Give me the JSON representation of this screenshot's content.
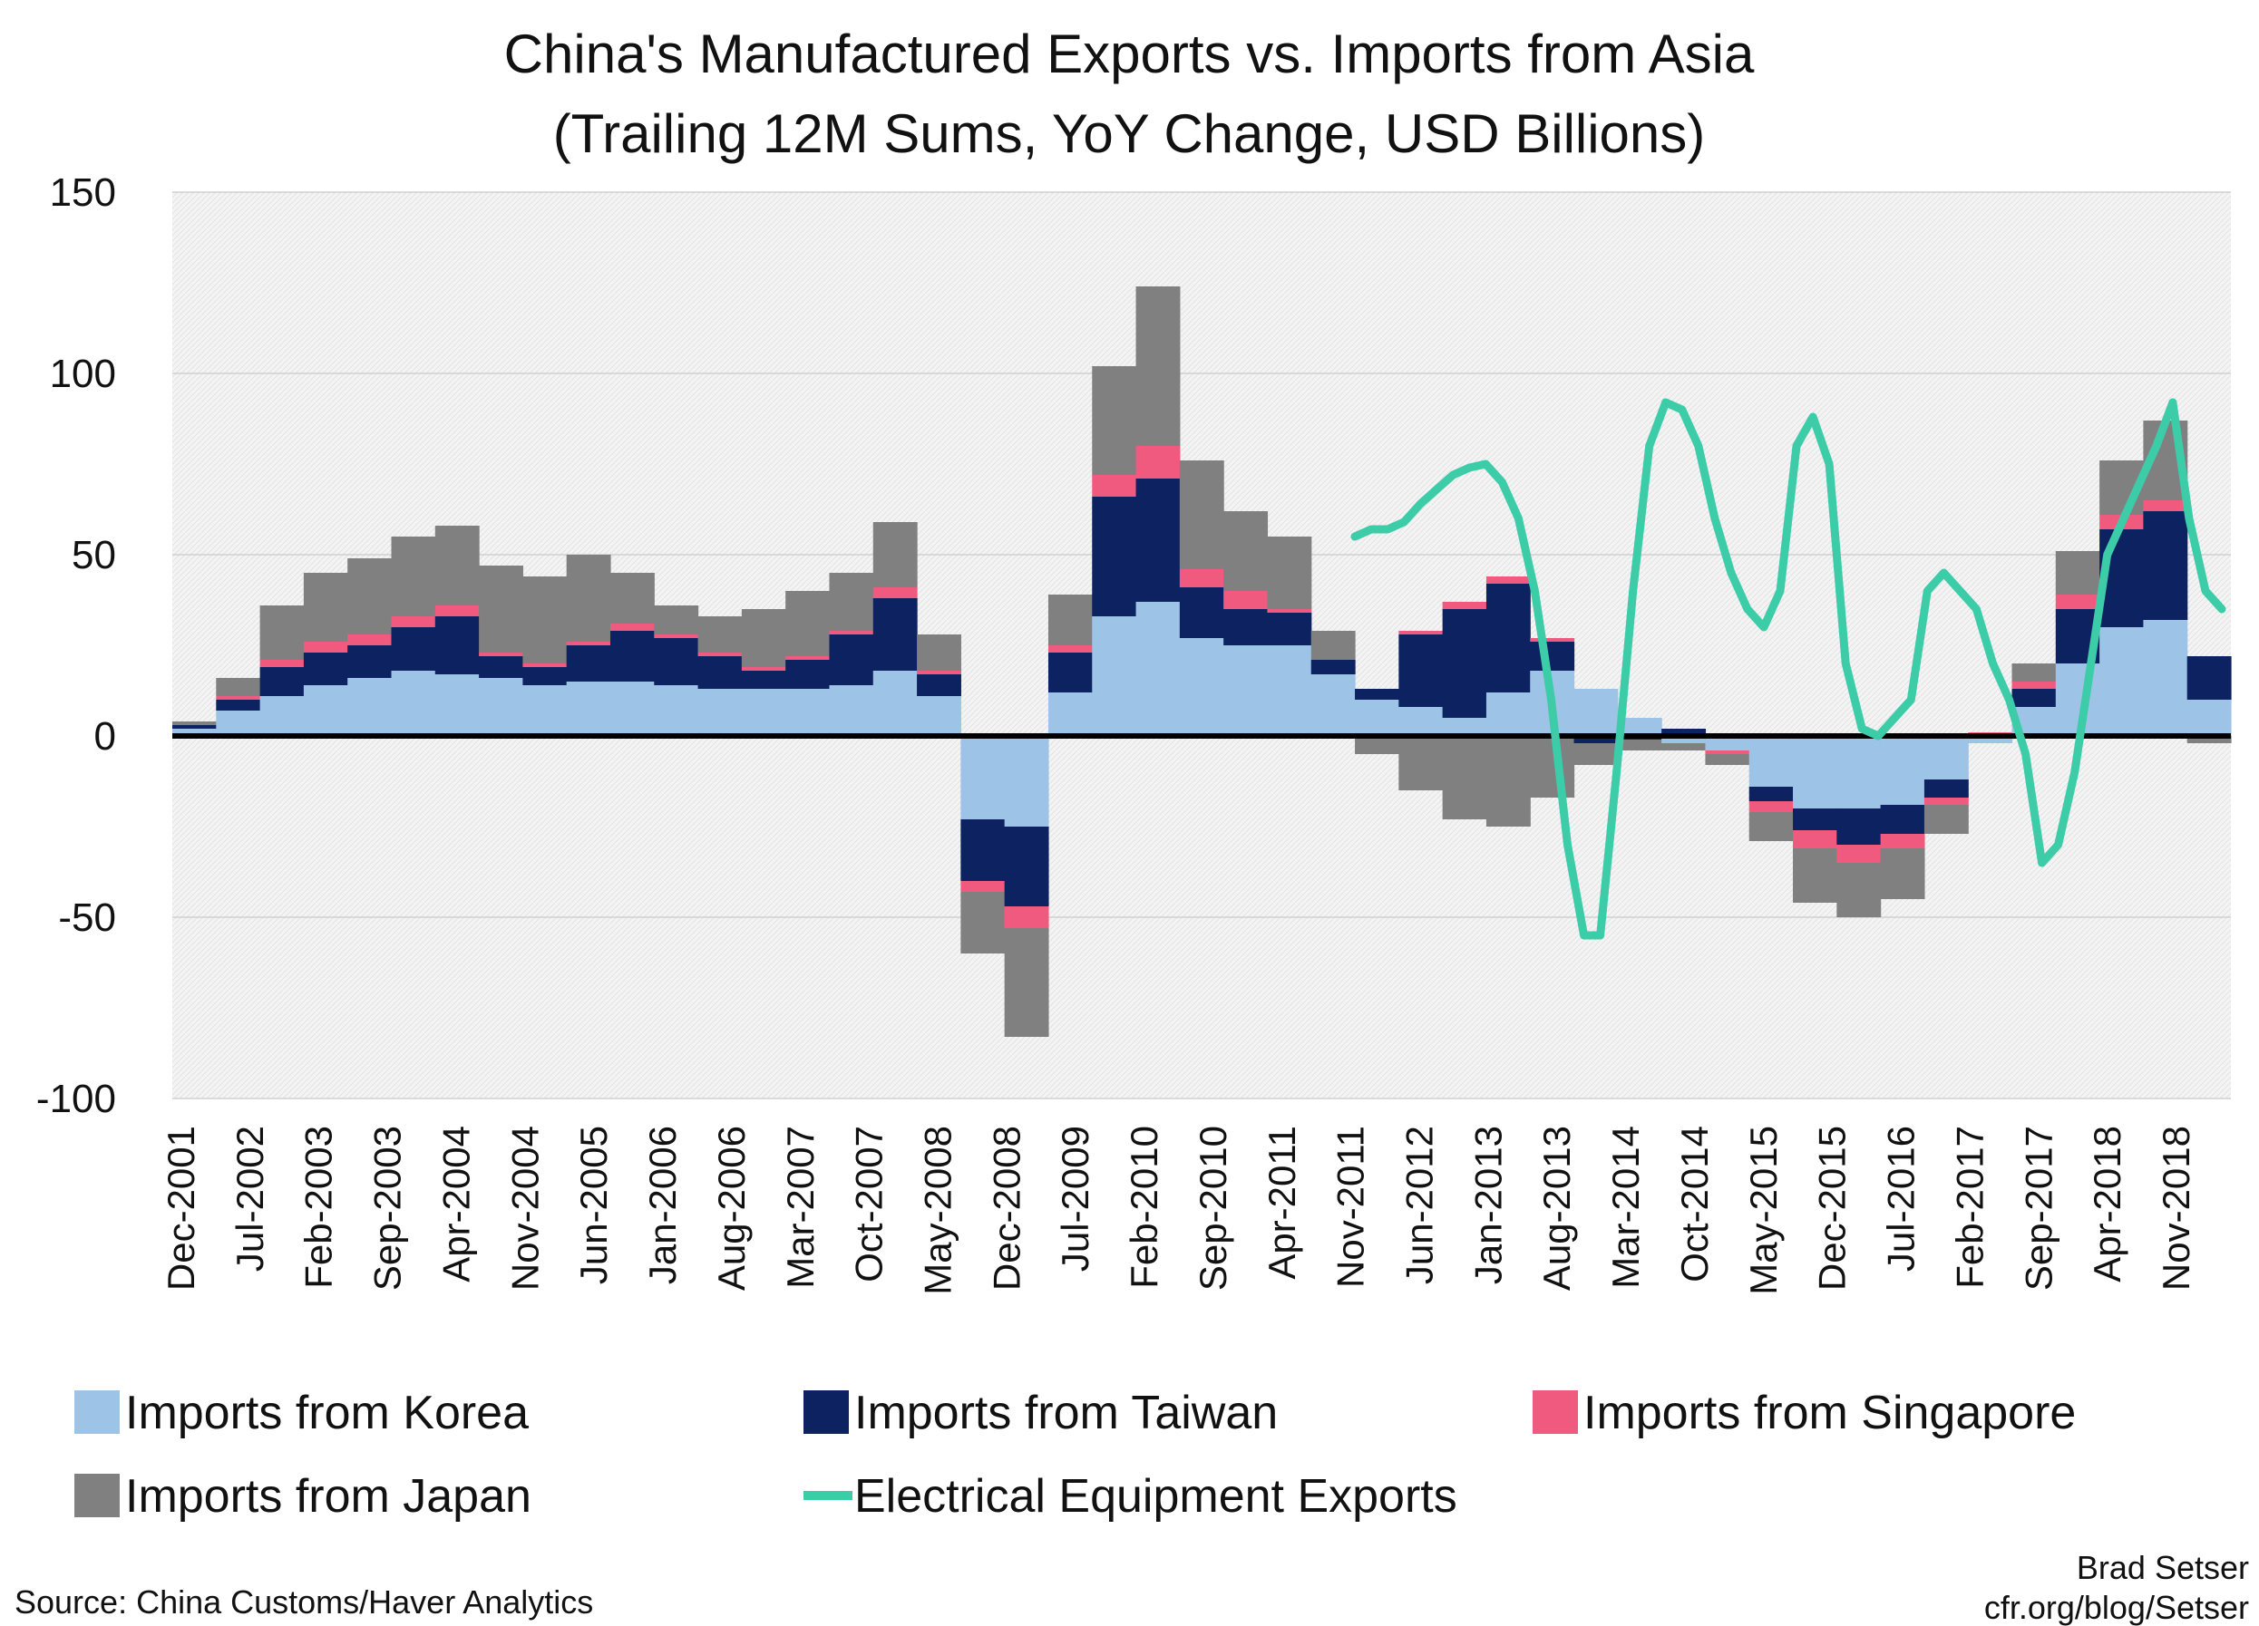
{
  "chart_data": {
    "type": "bar",
    "title": "China's Manufactured Exports vs. Imports from Asia",
    "subtitle": "(Trailing 12M Sums, YoY Change, USD Billions)",
    "ylim": [
      -100,
      150
    ],
    "y_ticks": [
      150,
      100,
      50,
      0,
      -50,
      -100
    ],
    "grid": true,
    "legend_position": "bottom",
    "stacked": true,
    "x_ticks": [
      "Dec-2001",
      "Jul-2002",
      "Feb-2003",
      "Sep-2003",
      "Apr-2004",
      "Nov-2004",
      "Jun-2005",
      "Jan-2006",
      "Aug-2006",
      "Mar-2007",
      "Oct-2007",
      "May-2008",
      "Dec-2008",
      "Jul-2009",
      "Feb-2010",
      "Sep-2010",
      "Apr-2011",
      "Nov-2011",
      "Jun-2012",
      "Jan-2013",
      "Aug-2013",
      "Mar-2014",
      "Oct-2014",
      "May-2015",
      "Dec-2015",
      "Jul-2016",
      "Feb-2017",
      "Sep-2017",
      "Apr-2018",
      "Nov-2018"
    ],
    "series": [
      {
        "name": "Imports from Korea",
        "kind": "bar",
        "color": "#9dc3e6",
        "values": [
          2,
          7,
          11,
          14,
          16,
          18,
          17,
          16,
          14,
          15,
          15,
          14,
          13,
          13,
          13,
          14,
          18,
          11,
          -23,
          -25,
          12,
          33,
          37,
          27,
          25,
          25,
          17,
          10,
          8,
          5,
          12,
          18,
          13,
          5,
          -2,
          -4,
          -14,
          -20,
          -20,
          -19,
          -12,
          -2,
          8,
          20,
          30,
          32,
          10
        ]
      },
      {
        "name": "Imports from Taiwan",
        "kind": "bar",
        "color": "#0d2260",
        "values": [
          1,
          3,
          8,
          9,
          9,
          12,
          16,
          6,
          5,
          10,
          14,
          13,
          9,
          5,
          8,
          14,
          20,
          6,
          -17,
          -22,
          11,
          33,
          34,
          14,
          10,
          9,
          4,
          3,
          20,
          30,
          30,
          8,
          -2,
          -1,
          2,
          0,
          -4,
          -6,
          -10,
          -8,
          -5,
          0,
          5,
          15,
          27,
          30,
          12
        ]
      },
      {
        "name": "Imports from Singapore",
        "kind": "bar",
        "color": "#f05a7e",
        "values": [
          0,
          1,
          2,
          3,
          3,
          3,
          3,
          1,
          1,
          1,
          2,
          1,
          1,
          1,
          1,
          1,
          3,
          1,
          -3,
          -6,
          2,
          6,
          9,
          5,
          5,
          1,
          0,
          0,
          1,
          2,
          2,
          1,
          0,
          0,
          0,
          -1,
          -3,
          -5,
          -5,
          -4,
          -2,
          1,
          2,
          4,
          4,
          3,
          0
        ]
      },
      {
        "name": "Imports from Japan",
        "kind": "bar",
        "color": "#808080",
        "values": [
          1,
          5,
          15,
          19,
          21,
          22,
          22,
          24,
          24,
          24,
          14,
          8,
          10,
          16,
          18,
          16,
          18,
          10,
          -17,
          -30,
          14,
          30,
          44,
          30,
          22,
          20,
          8,
          -5,
          -15,
          -23,
          -25,
          -17,
          -6,
          -3,
          -2,
          -3,
          -8,
          -15,
          -15,
          -14,
          -8,
          0,
          5,
          12,
          15,
          22,
          -2
        ]
      },
      {
        "name": "Electrical Equipment Exports",
        "kind": "line",
        "color": "#3dcca8",
        "x_start_index": 27,
        "values": [
          55,
          57,
          57,
          59,
          64,
          68,
          72,
          74,
          75,
          70,
          60,
          40,
          10,
          -30,
          -55,
          -55,
          -10,
          40,
          80,
          92,
          90,
          80,
          60,
          45,
          35,
          30,
          40,
          80,
          88,
          75,
          20,
          2,
          0,
          5,
          10,
          40,
          45,
          40,
          35,
          20,
          10,
          -5,
          -35,
          -30,
          -10,
          20,
          50,
          60,
          70,
          80,
          92,
          60,
          40,
          35
        ]
      }
    ]
  },
  "legend": {
    "row1": [
      "Imports from Korea",
      "Imports from Taiwan",
      "Imports from Singapore"
    ],
    "row2": [
      "Imports from Japan",
      "Electrical Equipment Exports"
    ]
  },
  "footer": {
    "source": "Source: China Customs/Haver Analytics",
    "author": "Brad Setser",
    "url": "cfr.org/blog/Setser"
  }
}
